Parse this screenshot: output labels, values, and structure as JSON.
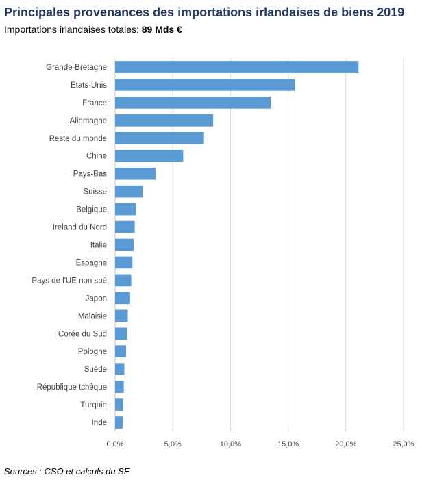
{
  "chart_data": {
    "type": "bar",
    "orientation": "horizontal",
    "title": "Principales provenances des importations irlandaises de biens 2019",
    "subtitle_prefix": "Importations irlandaises totales: ",
    "subtitle_value": "89 Mds €",
    "categories": [
      "Grande-Bretagne",
      "Etats-Unis",
      "France",
      "Allemagne",
      "Reste du monde",
      "Chine",
      "Pays-Bas",
      "Suisse",
      "Belgique",
      "Ireland du Nord",
      "Italie",
      "Espagne",
      "Pays de l'UE non spé",
      "Japon",
      "Malaisie",
      "Corée du Sud",
      "Pologne",
      "Suède",
      "République tchèque",
      "Turquie",
      "Inde"
    ],
    "values": [
      21.1,
      15.6,
      13.5,
      8.5,
      7.7,
      5.9,
      3.5,
      2.4,
      1.8,
      1.7,
      1.6,
      1.5,
      1.4,
      1.3,
      1.1,
      1.05,
      0.95,
      0.8,
      0.75,
      0.7,
      0.65
    ],
    "xlim": [
      0,
      25
    ],
    "xticks": [
      "0,0%",
      "5,0%",
      "10,0%",
      "15,0%",
      "20,0%",
      "25,0%"
    ],
    "grid": true,
    "bar_color": "#5b9bd5",
    "source": "Sources : CSO et calculs du SE"
  }
}
